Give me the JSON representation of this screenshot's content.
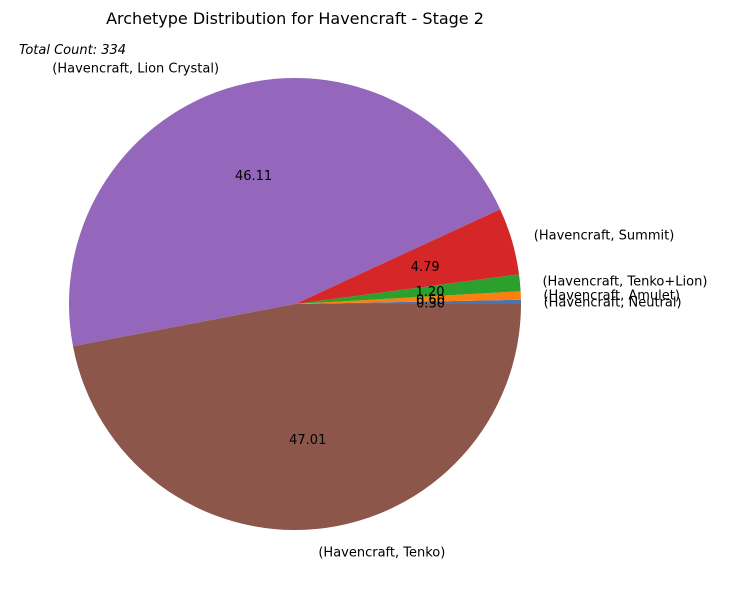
{
  "chart_data": {
    "type": "pie",
    "title": "Archetype Distribution for Havencraft - Stage 2",
    "annotation": "Total Count: 334",
    "slices": [
      {
        "label": "(Havencraft, Neutral)",
        "value": 0.3,
        "pct_label": "0.30",
        "color": "#4c72b0"
      },
      {
        "label": "(Havencraft, Amulet)",
        "value": 0.6,
        "pct_label": "0.60",
        "color": "#ff7f0e"
      },
      {
        "label": "(Havencraft, Tenko+Lion)",
        "value": 1.2,
        "pct_label": "1.20",
        "color": "#2ca02c"
      },
      {
        "label": "(Havencraft, Summit)",
        "value": 4.79,
        "pct_label": "4.79",
        "color": "#d62728"
      },
      {
        "label": "(Havencraft, Lion Crystal)",
        "value": 46.11,
        "pct_label": "46.11",
        "color": "#9467bd"
      },
      {
        "label": "(Havencraft, Tenko)",
        "value": 47.01,
        "pct_label": "47.01",
        "color": "#8c564b"
      }
    ]
  }
}
